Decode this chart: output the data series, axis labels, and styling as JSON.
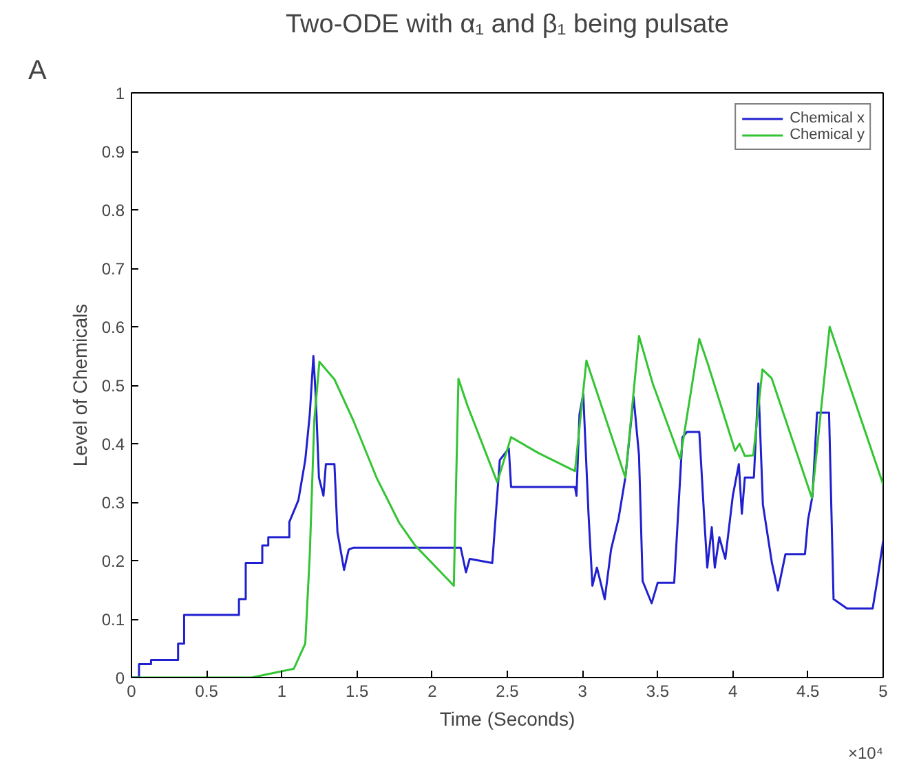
{
  "chart_data": {
    "type": "line",
    "title": "Two-ODE with α₁ and β₁ being pulsate",
    "xlabel": "Time (Seconds)",
    "ylabel": "Level of Chemicals",
    "annotations": [
      "A",
      "×10⁴"
    ],
    "xlim": [
      0,
      5
    ],
    "ylim": [
      0,
      1
    ],
    "xticks": [
      0,
      0.5,
      1,
      1.5,
      2,
      2.5,
      3,
      3.5,
      4,
      4.5,
      5
    ],
    "yticks": [
      0,
      0.1,
      0.2,
      0.3,
      0.4,
      0.5,
      0.6,
      0.7,
      0.8,
      0.9,
      1
    ],
    "grid": false,
    "legend": "top right",
    "line_style": "solid",
    "marker": "none",
    "series": [
      {
        "name": "Chemical x",
        "color": "#2020d0",
        "x": [
          0,
          0.05,
          0.05,
          0.13,
          0.13,
          0.31,
          0.31,
          0.35,
          0.35,
          0.715,
          0.715,
          0.76,
          0.76,
          0.87,
          0.87,
          0.91,
          0.91,
          1.05,
          1.05,
          1.11,
          1.156,
          1.186,
          1.21,
          1.226,
          1.247,
          1.277,
          1.293,
          1.35,
          1.37,
          1.414,
          1.445,
          1.475,
          2.19,
          2.225,
          2.25,
          2.4,
          2.45,
          2.51,
          2.525,
          2.95,
          2.96,
          2.98,
          3.005,
          3.04,
          3.066,
          3.096,
          3.148,
          3.19,
          3.24,
          3.285,
          3.34,
          3.376,
          3.4,
          3.46,
          3.5,
          3.61,
          3.665,
          3.695,
          3.777,
          3.81,
          3.83,
          3.86,
          3.88,
          3.91,
          3.95,
          4.0,
          4.04,
          4.06,
          4.08,
          4.14,
          4.17,
          4.2,
          4.26,
          4.3,
          4.35,
          4.48,
          4.5,
          4.53,
          4.56,
          4.64,
          4.67,
          4.76,
          4.93,
          4.96,
          5.0
        ],
        "values": [
          0,
          0,
          0.023,
          0.023,
          0.03,
          0.03,
          0.058,
          0.058,
          0.107,
          0.107,
          0.134,
          0.134,
          0.196,
          0.196,
          0.226,
          0.226,
          0.24,
          0.24,
          0.266,
          0.303,
          0.372,
          0.45,
          0.55,
          0.48,
          0.342,
          0.311,
          0.365,
          0.365,
          0.249,
          0.184,
          0.219,
          0.222,
          0.222,
          0.18,
          0.203,
          0.196,
          0.372,
          0.392,
          0.326,
          0.326,
          0.311,
          0.45,
          0.485,
          0.28,
          0.157,
          0.188,
          0.134,
          0.219,
          0.272,
          0.342,
          0.48,
          0.38,
          0.165,
          0.127,
          0.162,
          0.162,
          0.411,
          0.42,
          0.42,
          0.272,
          0.188,
          0.257,
          0.188,
          0.24,
          0.203,
          0.311,
          0.365,
          0.28,
          0.342,
          0.342,
          0.503,
          0.296,
          0.196,
          0.149,
          0.211,
          0.211,
          0.269,
          0.311,
          0.453,
          0.453,
          0.134,
          0.118,
          0.118,
          0.165,
          0.234
        ]
      },
      {
        "name": "Chemical y",
        "color": "#33c433",
        "x": [
          0,
          0.8,
          1.08,
          1.156,
          1.186,
          1.216,
          1.25,
          1.35,
          1.475,
          1.63,
          1.78,
          1.886,
          2.144,
          2.175,
          2.235,
          2.433,
          2.525,
          2.707,
          2.95,
          3.026,
          3.285,
          3.376,
          3.467,
          3.65,
          3.777,
          3.832,
          4.015,
          4.045,
          4.08,
          4.136,
          4.197,
          4.258,
          4.526,
          4.644,
          5.0
        ],
        "values": [
          0,
          0,
          0.015,
          0.058,
          0.21,
          0.44,
          0.54,
          0.51,
          0.44,
          0.342,
          0.265,
          0.226,
          0.157,
          0.511,
          0.465,
          0.334,
          0.411,
          0.384,
          0.353,
          0.542,
          0.342,
          0.584,
          0.503,
          0.374,
          0.579,
          0.538,
          0.388,
          0.4,
          0.379,
          0.38,
          0.527,
          0.512,
          0.307,
          0.6,
          0.33
        ]
      }
    ]
  }
}
